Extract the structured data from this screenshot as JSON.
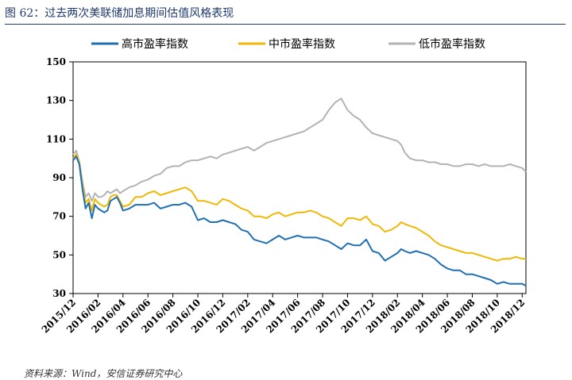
{
  "figure": {
    "title": "图 62：过去两次美联储加息期间估值风格表现",
    "source": "资料来源：Wind，安信证券研究中心"
  },
  "chart_data": {
    "type": "line",
    "title": "",
    "xlabel": "",
    "ylabel": "",
    "ylim": [
      30,
      150
    ],
    "yticks": [
      30,
      50,
      70,
      90,
      110,
      130,
      150
    ],
    "xticks": [
      "2015/12",
      "2016/02",
      "2016/04",
      "2016/06",
      "2016/08",
      "2016/10",
      "2016/12",
      "2017/02",
      "2017/04",
      "2017/06",
      "2017/08",
      "2017/10",
      "2017/12",
      "2018/02",
      "2018/04",
      "2018/06",
      "2018/08",
      "2018/10",
      "2018/12"
    ],
    "grid": false,
    "legend_position": "top",
    "x_units": "months since 2015/12",
    "series": [
      {
        "name": "高市盈率指数",
        "color": "#1f6fb5",
        "x": [
          0,
          0.25,
          0.5,
          0.75,
          1.0,
          1.25,
          1.5,
          1.75,
          2.0,
          2.25,
          2.5,
          2.75,
          3.0,
          3.25,
          3.5,
          3.75,
          4.0,
          4.5,
          5.0,
          5.5,
          6.0,
          6.5,
          7.0,
          7.5,
          8.0,
          8.5,
          9.0,
          9.5,
          10.0,
          10.5,
          11.0,
          11.5,
          12.0,
          12.5,
          13.0,
          13.5,
          14.0,
          14.5,
          15.0,
          15.5,
          16.0,
          16.5,
          17.0,
          17.5,
          18.0,
          18.5,
          19.0,
          19.5,
          20.0,
          20.5,
          21.0,
          21.5,
          22.0,
          22.5,
          23.0,
          23.5,
          24.0,
          24.5,
          25.0,
          25.5,
          26.0,
          26.3,
          26.6,
          27.0,
          27.5,
          28.0,
          28.5,
          29.0,
          29.5,
          30.0,
          30.5,
          31.0,
          31.5,
          32.0,
          32.5,
          33.0,
          33.5,
          34.0,
          34.5,
          35.0,
          35.5,
          36.0,
          36.3
        ],
        "values": [
          99,
          101,
          97,
          84,
          74,
          77,
          69,
          76,
          74,
          73,
          72,
          73,
          78,
          79,
          80,
          77,
          73,
          74,
          76,
          76,
          76,
          77,
          74,
          75,
          76,
          76,
          77,
          75,
          68,
          69,
          67,
          67,
          68,
          67,
          66,
          63,
          62,
          58,
          57,
          56,
          58,
          60,
          58,
          59,
          60,
          59,
          59,
          59,
          58,
          57,
          55,
          53,
          56,
          55,
          55,
          58,
          52,
          51,
          47,
          49,
          51,
          53,
          52,
          51,
          52,
          51,
          50,
          48,
          45,
          43,
          42,
          42,
          40,
          40,
          39,
          38,
          37,
          35,
          36,
          35,
          35,
          35,
          34
        ]
      },
      {
        "name": "中市盈率指数",
        "color": "#f2b705",
        "x": [
          0,
          0.25,
          0.5,
          0.75,
          1.0,
          1.25,
          1.5,
          1.75,
          2.0,
          2.25,
          2.5,
          2.75,
          3.0,
          3.25,
          3.5,
          3.75,
          4.0,
          4.5,
          5.0,
          5.5,
          6.0,
          6.5,
          7.0,
          7.5,
          8.0,
          8.5,
          9.0,
          9.5,
          10.0,
          10.5,
          11.0,
          11.5,
          12.0,
          12.5,
          13.0,
          13.5,
          14.0,
          14.5,
          15.0,
          15.5,
          16.0,
          16.5,
          17.0,
          17.5,
          18.0,
          18.5,
          19.0,
          19.5,
          20.0,
          20.5,
          21.0,
          21.5,
          22.0,
          22.5,
          23.0,
          23.5,
          24.0,
          24.5,
          25.0,
          25.5,
          26.0,
          26.3,
          26.6,
          27.0,
          27.5,
          28.0,
          28.5,
          29.0,
          29.5,
          30.0,
          30.5,
          31.0,
          31.5,
          32.0,
          32.5,
          33.0,
          33.5,
          34.0,
          34.5,
          35.0,
          35.5,
          36.0,
          36.3
        ],
        "values": [
          100,
          102,
          98,
          86,
          77,
          79,
          73,
          79,
          77,
          76,
          75,
          76,
          80,
          81,
          81,
          78,
          75,
          76,
          80,
          80,
          82,
          83,
          81,
          82,
          83,
          84,
          85,
          83,
          78,
          78,
          77,
          76,
          79,
          78,
          76,
          74,
          73,
          70,
          70,
          69,
          71,
          72,
          70,
          71,
          72,
          72,
          73,
          72,
          70,
          69,
          67,
          65,
          69,
          69,
          68,
          70,
          66,
          65,
          62,
          63,
          65,
          67,
          66,
          65,
          64,
          62,
          60,
          57,
          55,
          54,
          53,
          52,
          51,
          51,
          50,
          49,
          48,
          47,
          48,
          48,
          49,
          48,
          48
        ]
      },
      {
        "name": "低市盈率指数",
        "color": "#b3b3b3",
        "x": [
          0,
          0.25,
          0.5,
          0.75,
          1.0,
          1.25,
          1.5,
          1.75,
          2.0,
          2.25,
          2.5,
          2.75,
          3.0,
          3.25,
          3.5,
          3.75,
          4.0,
          4.5,
          5.0,
          5.5,
          6.0,
          6.5,
          7.0,
          7.5,
          8.0,
          8.5,
          9.0,
          9.5,
          10.0,
          10.5,
          11.0,
          11.5,
          12.0,
          12.5,
          13.0,
          13.5,
          14.0,
          14.5,
          15.0,
          15.5,
          16.0,
          16.5,
          17.0,
          17.5,
          18.0,
          18.5,
          19.0,
          19.5,
          20.0,
          20.5,
          21.0,
          21.5,
          22.0,
          22.5,
          23.0,
          23.5,
          24.0,
          24.5,
          25.0,
          25.5,
          26.0,
          26.3,
          26.6,
          27.0,
          27.5,
          28.0,
          28.5,
          29.0,
          29.5,
          30.0,
          30.5,
          31.0,
          31.5,
          32.0,
          32.5,
          33.0,
          33.5,
          34.0,
          34.5,
          35.0,
          35.5,
          36.0,
          36.3
        ],
        "values": [
          102,
          104,
          98,
          88,
          80,
          82,
          78,
          82,
          80,
          80,
          81,
          83,
          82,
          83,
          84,
          82,
          83,
          85,
          86,
          88,
          89,
          91,
          92,
          95,
          96,
          96,
          98,
          99,
          99,
          100,
          101,
          100,
          102,
          103,
          104,
          105,
          106,
          104,
          106,
          108,
          109,
          110,
          111,
          112,
          113,
          114,
          116,
          118,
          120,
          125,
          129,
          131,
          125,
          122,
          120,
          116,
          113,
          112,
          111,
          110,
          109,
          107,
          103,
          100,
          99,
          99,
          98,
          98,
          97,
          97,
          96,
          96,
          97,
          97,
          96,
          97,
          96,
          96,
          96,
          97,
          96,
          95,
          93
        ]
      }
    ]
  }
}
